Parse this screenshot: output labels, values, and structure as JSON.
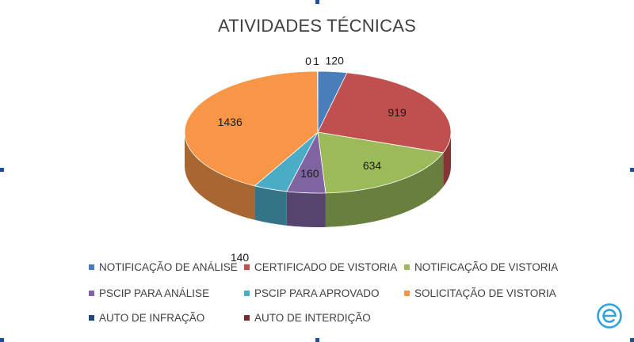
{
  "chart_data": {
    "type": "pie",
    "title": "ATIVIDADES TÉCNICAS",
    "three_d": true,
    "legend_position": "bottom",
    "series": [
      {
        "name": "NOTIFICAÇÃO DE ANÁLISE",
        "value": 120,
        "label": "120",
        "color": "#4a7ebb"
      },
      {
        "name": "CERTIFICADO DE VISTORIA",
        "value": 919,
        "label": "919",
        "color": "#c0504d"
      },
      {
        "name": "NOTIFICAÇÃO DE VISTORIA",
        "value": 634,
        "label": "634",
        "color": "#9bbb59"
      },
      {
        "name": "PSCIP PARA ANÁLISE",
        "value": 160,
        "label": "160",
        "color": "#8064a2"
      },
      {
        "name": "PSCIP PARA APROVADO",
        "value": 140,
        "label": "140",
        "color": "#4bacc6"
      },
      {
        "name": "SOLICITAÇÃO DE VISTORIA",
        "value": 1436,
        "label": "1436",
        "color": "#f79646"
      },
      {
        "name": "AUTO DE INFRAÇÃO",
        "value": 0,
        "label": "0",
        "color": "#1f497d"
      },
      {
        "name": "AUTO DE INTERDIÇÃO",
        "value": 1,
        "label": "1",
        "color": "#772c2a"
      }
    ]
  },
  "brand_icon": "e-logo-icon"
}
